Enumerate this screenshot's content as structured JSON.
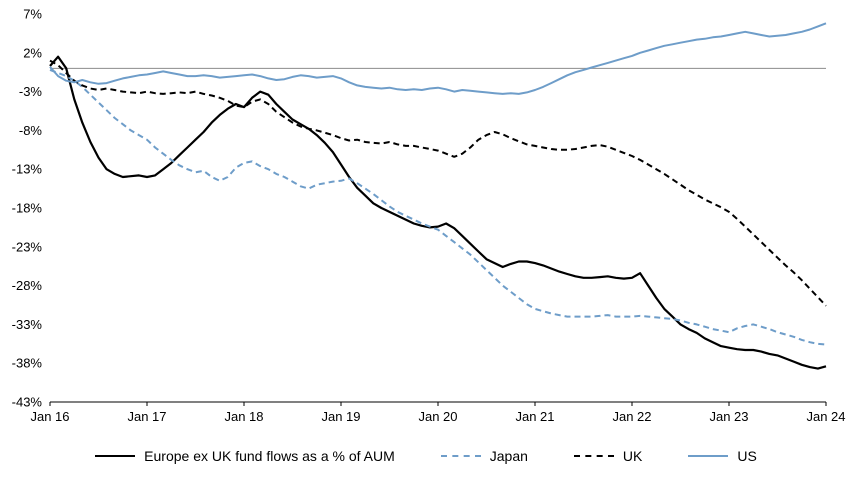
{
  "chart_data": {
    "type": "line",
    "title": "",
    "xlabel": "",
    "ylabel": "",
    "ylim": [
      -43,
      7
    ],
    "yticks": [
      7,
      2,
      -3,
      -8,
      -13,
      -18,
      -23,
      -28,
      -33,
      -38,
      -43
    ],
    "ytick_labels": [
      "7%",
      "2%",
      "-3%",
      "-8%",
      "-13%",
      "-18%",
      "-23%",
      "-28%",
      "-33%",
      "-38%",
      "-43%"
    ],
    "xticks": [
      0,
      12,
      24,
      36,
      48,
      60,
      72,
      84,
      96
    ],
    "xtick_labels": [
      "Jan 16",
      "Jan 17",
      "Jan 18",
      "Jan 19",
      "Jan 20",
      "Jan 21",
      "Jan 22",
      "Jan 23",
      "Jan 24"
    ],
    "x_unit": "monthly, Jan 2016 - Jan 2024",
    "grid": false,
    "zero_line": true,
    "zero_line_color": "#8c8c8c",
    "legend_position": "bottom",
    "series": [
      {
        "name": "Europe ex UK fund flows as a % of AUM",
        "color": "#000000",
        "dash": "solid",
        "values": [
          0.3,
          1.5,
          0.0,
          -4.0,
          -7.0,
          -9.5,
          -11.5,
          -13.0,
          -13.6,
          -14.0,
          -13.9,
          -13.8,
          -14.0,
          -13.8,
          -13.0,
          -12.2,
          -11.2,
          -10.2,
          -9.2,
          -8.2,
          -7.0,
          -6.0,
          -5.2,
          -4.6,
          -5.0,
          -3.8,
          -3.0,
          -3.4,
          -4.6,
          -5.6,
          -6.6,
          -7.2,
          -7.8,
          -8.6,
          -9.6,
          -10.8,
          -12.4,
          -14.0,
          -15.4,
          -16.4,
          -17.4,
          -18.0,
          -18.5,
          -19.0,
          -19.5,
          -20.0,
          -20.3,
          -20.5,
          -20.4,
          -20.0,
          -20.6,
          -21.6,
          -22.6,
          -23.6,
          -24.6,
          -25.1,
          -25.6,
          -25.2,
          -24.9,
          -24.9,
          -25.1,
          -25.4,
          -25.8,
          -26.2,
          -26.5,
          -26.8,
          -27.0,
          -27.0,
          -26.9,
          -26.8,
          -27.0,
          -27.1,
          -27.0,
          -26.4,
          -28.0,
          -29.6,
          -31.0,
          -32.0,
          -33.0,
          -33.6,
          -34.1,
          -34.8,
          -35.3,
          -35.8,
          -36.0,
          -36.2,
          -36.3,
          -36.3,
          -36.5,
          -36.8,
          -37.0,
          -37.4,
          -37.8,
          -38.2,
          -38.5,
          -38.7,
          -38.4
        ]
      },
      {
        "name": "Japan",
        "color": "#6e9dc9",
        "dash": "dashed",
        "values": [
          -0.2,
          -0.6,
          -1.0,
          -1.6,
          -2.4,
          -3.4,
          -4.4,
          -5.4,
          -6.4,
          -7.2,
          -8.0,
          -8.6,
          -9.2,
          -10.2,
          -11.0,
          -11.8,
          -12.5,
          -13.0,
          -13.4,
          -13.2,
          -14.0,
          -14.5,
          -14.0,
          -12.8,
          -12.2,
          -12.0,
          -12.6,
          -13.0,
          -13.6,
          -14.0,
          -14.6,
          -15.2,
          -15.5,
          -15.0,
          -14.8,
          -14.6,
          -14.5,
          -14.2,
          -14.8,
          -15.5,
          -16.2,
          -17.0,
          -17.8,
          -18.5,
          -19.0,
          -19.5,
          -20.0,
          -20.4,
          -20.8,
          -21.6,
          -22.4,
          -23.2,
          -24.0,
          -25.0,
          -26.0,
          -27.0,
          -28.0,
          -28.8,
          -29.6,
          -30.4,
          -31.0,
          -31.3,
          -31.6,
          -31.8,
          -32.0,
          -32.0,
          -32.0,
          -32.0,
          -31.9,
          -31.8,
          -32.0,
          -32.0,
          -32.0,
          -31.9,
          -32.0,
          -32.1,
          -32.2,
          -32.3,
          -32.5,
          -32.8,
          -33.0,
          -33.3,
          -33.6,
          -33.8,
          -34.0,
          -33.5,
          -33.2,
          -33.0,
          -33.3,
          -33.6,
          -34.0,
          -34.3,
          -34.6,
          -35.0,
          -35.3,
          -35.5,
          -35.6
        ]
      },
      {
        "name": "UK",
        "color": "#000000",
        "dash": "dashed",
        "values": [
          1.0,
          0.4,
          -0.6,
          -1.6,
          -2.2,
          -2.6,
          -2.8,
          -2.6,
          -2.8,
          -3.0,
          -3.1,
          -3.2,
          -3.0,
          -3.2,
          -3.3,
          -3.2,
          -3.1,
          -3.2,
          -3.0,
          -3.3,
          -3.5,
          -3.8,
          -4.2,
          -4.8,
          -5.0,
          -4.3,
          -4.0,
          -4.6,
          -5.6,
          -6.3,
          -7.0,
          -7.5,
          -7.8,
          -8.0,
          -8.3,
          -8.6,
          -9.0,
          -9.3,
          -9.2,
          -9.5,
          -9.6,
          -9.7,
          -9.5,
          -9.8,
          -10.0,
          -10.0,
          -10.2,
          -10.4,
          -10.6,
          -11.0,
          -11.4,
          -11.0,
          -10.2,
          -9.2,
          -8.6,
          -8.2,
          -8.5,
          -9.0,
          -9.4,
          -9.8,
          -10.0,
          -10.2,
          -10.4,
          -10.5,
          -10.5,
          -10.4,
          -10.2,
          -10.0,
          -9.9,
          -10.1,
          -10.5,
          -10.9,
          -11.3,
          -11.8,
          -12.4,
          -13.0,
          -13.6,
          -14.3,
          -15.0,
          -15.7,
          -16.3,
          -16.9,
          -17.4,
          -17.9,
          -18.5,
          -19.4,
          -20.4,
          -21.4,
          -22.4,
          -23.4,
          -24.4,
          -25.4,
          -26.3,
          -27.3,
          -28.4,
          -29.5,
          -30.6
        ]
      },
      {
        "name": "US",
        "color": "#6e9dc9",
        "dash": "solid",
        "values": [
          0.2,
          -1.0,
          -1.6,
          -1.8,
          -1.5,
          -1.8,
          -2.0,
          -1.9,
          -1.6,
          -1.3,
          -1.1,
          -0.9,
          -0.8,
          -0.6,
          -0.4,
          -0.6,
          -0.8,
          -1.0,
          -1.0,
          -0.9,
          -1.0,
          -1.2,
          -1.1,
          -1.0,
          -0.9,
          -0.8,
          -1.0,
          -1.3,
          -1.5,
          -1.4,
          -1.1,
          -0.9,
          -1.0,
          -1.2,
          -1.1,
          -1.0,
          -1.3,
          -1.8,
          -2.2,
          -2.4,
          -2.5,
          -2.6,
          -2.5,
          -2.7,
          -2.8,
          -2.7,
          -2.8,
          -2.6,
          -2.5,
          -2.7,
          -3.0,
          -2.8,
          -2.9,
          -3.0,
          -3.1,
          -3.2,
          -3.3,
          -3.2,
          -3.3,
          -3.1,
          -2.8,
          -2.4,
          -1.9,
          -1.4,
          -0.9,
          -0.5,
          -0.2,
          0.1,
          0.4,
          0.7,
          1.0,
          1.3,
          1.6,
          2.0,
          2.3,
          2.6,
          2.9,
          3.1,
          3.3,
          3.5,
          3.7,
          3.8,
          4.0,
          4.1,
          4.3,
          4.5,
          4.7,
          4.5,
          4.3,
          4.1,
          4.2,
          4.3,
          4.5,
          4.7,
          5.0,
          5.4,
          5.8
        ]
      }
    ]
  }
}
